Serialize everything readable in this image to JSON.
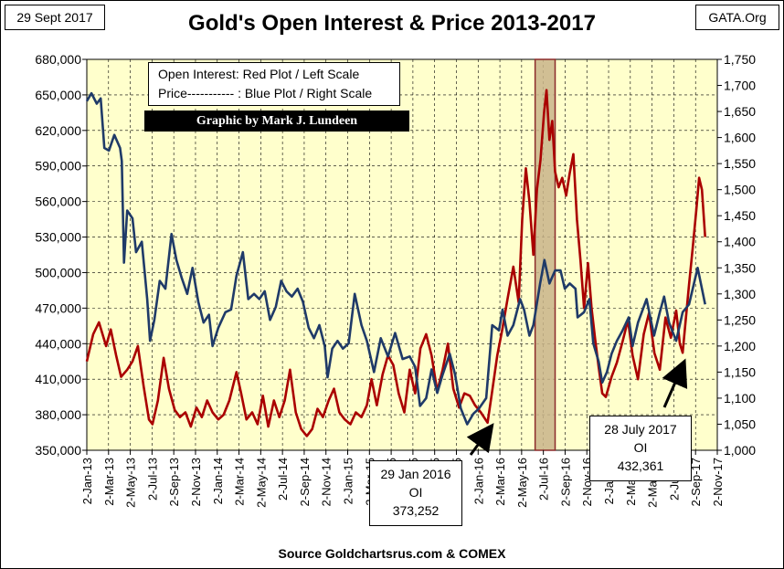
{
  "header": {
    "date": "29 Sept 2017",
    "brand": "GATA.Org",
    "title": "Gold's Open Interest & Price 2013-2017"
  },
  "legend": {
    "line1": "Open Interest:  Red Plot / Left Scale",
    "line2": "Price----------- : Blue Plot / Right Scale",
    "credit": "Graphic by Mark J. Lundeen"
  },
  "annotations": [
    {
      "date_line": "29 Jan 2016",
      "label": "OI",
      "value": "373,252"
    },
    {
      "date_line": "28 July 2017",
      "label": "OI",
      "value": "432,361"
    }
  ],
  "source": "Source Goldchartsrus.com & COMEX",
  "colors": {
    "plot_bg": "#ffffcc",
    "open_interest": "#aa0000",
    "price": "#1f3a68",
    "highlight": "#c9b48a",
    "highlight_border": "#8b2a2a"
  },
  "chart_data": {
    "type": "line",
    "x_tick_labels": [
      "2-Jan-13",
      "2-Mar-13",
      "2-May-13",
      "2-Jul-13",
      "2-Sep-13",
      "2-Nov-13",
      "2-Jan-14",
      "2-Mar-14",
      "2-May-14",
      "2-Jul-14",
      "2-Sep-14",
      "2-Nov-14",
      "2-Jan-15",
      "2-Mar-15",
      "2-May-15",
      "2-Jul-15",
      "2-Sep-15",
      "2-Nov-15",
      "2-Jan-16",
      "2-Mar-16",
      "2-May-16",
      "2-Jul-16",
      "2-Sep-16",
      "2-Nov-16",
      "2-Jan-17",
      "2-Mar-17",
      "2-May-17",
      "2-Jul-17",
      "2-Sep-17",
      "2-Nov-17"
    ],
    "y_left": {
      "min": 350000,
      "max": 680000,
      "step": 30000,
      "ticks": [
        "350,000",
        "380,000",
        "410,000",
        "440,000",
        "470,000",
        "500,000",
        "530,000",
        "560,000",
        "590,000",
        "620,000",
        "650,000",
        "680,000"
      ]
    },
    "y_right": {
      "min": 1000,
      "max": 1750,
      "step": 50,
      "ticks": [
        "1,000",
        "1,050",
        "1,100",
        "1,150",
        "1,200",
        "1,250",
        "1,300",
        "1,350",
        "1,400",
        "1,450",
        "1,500",
        "1,550",
        "1,600",
        "1,650",
        "1,700",
        "1,750"
      ]
    },
    "highlight_range": [
      "2016-06-10",
      "2016-08-05"
    ],
    "series": [
      {
        "name": "Open Interest",
        "axis": "left",
        "points": [
          [
            "2013-01-02",
            425000
          ],
          [
            "2013-01-20",
            448000
          ],
          [
            "2013-02-05",
            458000
          ],
          [
            "2013-02-25",
            438000
          ],
          [
            "2013-03-10",
            452000
          ],
          [
            "2013-03-25",
            430000
          ],
          [
            "2013-04-08",
            412000
          ],
          [
            "2013-04-25",
            418000
          ],
          [
            "2013-05-10",
            425000
          ],
          [
            "2013-05-25",
            438000
          ],
          [
            "2013-06-10",
            404000
          ],
          [
            "2013-06-25",
            376000
          ],
          [
            "2013-07-05",
            372000
          ],
          [
            "2013-07-20",
            392000
          ],
          [
            "2013-08-05",
            428000
          ],
          [
            "2013-08-20",
            402000
          ],
          [
            "2013-09-05",
            384000
          ],
          [
            "2013-09-20",
            378000
          ],
          [
            "2013-10-05",
            382000
          ],
          [
            "2013-10-20",
            370000
          ],
          [
            "2013-11-05",
            386000
          ],
          [
            "2013-11-20",
            378000
          ],
          [
            "2013-12-05",
            392000
          ],
          [
            "2013-12-20",
            382000
          ],
          [
            "2014-01-05",
            376000
          ],
          [
            "2014-01-20",
            380000
          ],
          [
            "2014-02-05",
            392000
          ],
          [
            "2014-02-25",
            416000
          ],
          [
            "2014-03-10",
            398000
          ],
          [
            "2014-03-25",
            376000
          ],
          [
            "2014-04-10",
            382000
          ],
          [
            "2014-04-25",
            372000
          ],
          [
            "2014-05-10",
            396000
          ],
          [
            "2014-05-25",
            370000
          ],
          [
            "2014-06-10",
            392000
          ],
          [
            "2014-06-25",
            378000
          ],
          [
            "2014-07-10",
            392000
          ],
          [
            "2014-07-25",
            418000
          ],
          [
            "2014-08-10",
            382000
          ],
          [
            "2014-08-25",
            368000
          ],
          [
            "2014-09-10",
            362000
          ],
          [
            "2014-09-25",
            368000
          ],
          [
            "2014-10-10",
            385000
          ],
          [
            "2014-10-25",
            378000
          ],
          [
            "2014-11-10",
            392000
          ],
          [
            "2014-11-25",
            402000
          ],
          [
            "2014-12-10",
            382000
          ],
          [
            "2014-12-25",
            376000
          ],
          [
            "2015-01-10",
            372000
          ],
          [
            "2015-01-25",
            382000
          ],
          [
            "2015-02-10",
            378000
          ],
          [
            "2015-02-25",
            388000
          ],
          [
            "2015-03-10",
            410000
          ],
          [
            "2015-03-25",
            388000
          ],
          [
            "2015-04-10",
            414000
          ],
          [
            "2015-04-25",
            430000
          ],
          [
            "2015-05-10",
            422000
          ],
          [
            "2015-05-25",
            398000
          ],
          [
            "2015-06-10",
            382000
          ],
          [
            "2015-06-25",
            418000
          ],
          [
            "2015-07-10",
            398000
          ],
          [
            "2015-07-25",
            436000
          ],
          [
            "2015-08-10",
            448000
          ],
          [
            "2015-08-25",
            430000
          ],
          [
            "2015-09-10",
            400000
          ],
          [
            "2015-09-25",
            418000
          ],
          [
            "2015-10-10",
            440000
          ],
          [
            "2015-10-25",
            402000
          ],
          [
            "2015-11-10",
            386000
          ],
          [
            "2015-11-25",
            398000
          ],
          [
            "2015-12-10",
            396000
          ],
          [
            "2015-12-25",
            388000
          ],
          [
            "2016-01-10",
            382000
          ],
          [
            "2016-01-29",
            373252
          ],
          [
            "2016-02-10",
            398000
          ],
          [
            "2016-02-25",
            430000
          ],
          [
            "2016-03-10",
            452000
          ],
          [
            "2016-03-25",
            478000
          ],
          [
            "2016-04-10",
            505000
          ],
          [
            "2016-04-25",
            475000
          ],
          [
            "2016-05-05",
            545000
          ],
          [
            "2016-05-15",
            588000
          ],
          [
            "2016-05-25",
            560000
          ],
          [
            "2016-06-05",
            515000
          ],
          [
            "2016-06-15",
            570000
          ],
          [
            "2016-06-25",
            595000
          ],
          [
            "2016-07-05",
            635000
          ],
          [
            "2016-07-12",
            654000
          ],
          [
            "2016-07-20",
            612000
          ],
          [
            "2016-07-28",
            628000
          ],
          [
            "2016-08-05",
            585000
          ],
          [
            "2016-08-15",
            572000
          ],
          [
            "2016-08-25",
            580000
          ],
          [
            "2016-09-05",
            565000
          ],
          [
            "2016-09-15",
            584000
          ],
          [
            "2016-09-25",
            600000
          ],
          [
            "2016-10-05",
            545000
          ],
          [
            "2016-10-15",
            510000
          ],
          [
            "2016-10-25",
            470000
          ],
          [
            "2016-11-05",
            508000
          ],
          [
            "2016-11-15",
            470000
          ],
          [
            "2016-11-25",
            444000
          ],
          [
            "2016-12-05",
            420000
          ],
          [
            "2016-12-15",
            398000
          ],
          [
            "2016-12-25",
            395000
          ],
          [
            "2017-01-10",
            412000
          ],
          [
            "2017-01-25",
            424000
          ],
          [
            "2017-02-10",
            442000
          ],
          [
            "2017-02-25",
            460000
          ],
          [
            "2017-03-10",
            430000
          ],
          [
            "2017-03-25",
            410000
          ],
          [
            "2017-04-10",
            448000
          ],
          [
            "2017-04-25",
            466000
          ],
          [
            "2017-05-10",
            432000
          ],
          [
            "2017-05-25",
            418000
          ],
          [
            "2017-06-10",
            462000
          ],
          [
            "2017-06-25",
            445000
          ],
          [
            "2017-07-10",
            468000
          ],
          [
            "2017-07-20",
            440000
          ],
          [
            "2017-07-28",
            432361
          ],
          [
            "2017-08-05",
            458000
          ],
          [
            "2017-08-15",
            490000
          ],
          [
            "2017-08-25",
            520000
          ],
          [
            "2017-09-05",
            555000
          ],
          [
            "2017-09-12",
            580000
          ],
          [
            "2017-09-20",
            570000
          ],
          [
            "2017-09-29",
            530000
          ]
        ]
      },
      {
        "name": "Price",
        "axis": "right",
        "points": [
          [
            "2013-01-02",
            1670
          ],
          [
            "2013-01-15",
            1685
          ],
          [
            "2013-01-30",
            1665
          ],
          [
            "2013-02-10",
            1675
          ],
          [
            "2013-02-20",
            1580
          ],
          [
            "2013-03-05",
            1575
          ],
          [
            "2013-03-20",
            1605
          ],
          [
            "2013-04-05",
            1580
          ],
          [
            "2013-04-10",
            1555
          ],
          [
            "2013-04-16",
            1360
          ],
          [
            "2013-04-25",
            1460
          ],
          [
            "2013-05-10",
            1445
          ],
          [
            "2013-05-20",
            1380
          ],
          [
            "2013-06-05",
            1400
          ],
          [
            "2013-06-20",
            1290
          ],
          [
            "2013-06-28",
            1210
          ],
          [
            "2013-07-10",
            1250
          ],
          [
            "2013-07-25",
            1325
          ],
          [
            "2013-08-10",
            1310
          ],
          [
            "2013-08-27",
            1415
          ],
          [
            "2013-09-10",
            1365
          ],
          [
            "2013-09-25",
            1330
          ],
          [
            "2013-10-10",
            1300
          ],
          [
            "2013-10-25",
            1350
          ],
          [
            "2013-11-10",
            1285
          ],
          [
            "2013-11-25",
            1245
          ],
          [
            "2013-12-10",
            1260
          ],
          [
            "2013-12-20",
            1200
          ],
          [
            "2014-01-05",
            1235
          ],
          [
            "2014-01-25",
            1265
          ],
          [
            "2014-02-10",
            1270
          ],
          [
            "2014-02-25",
            1335
          ],
          [
            "2014-03-15",
            1380
          ],
          [
            "2014-03-30",
            1290
          ],
          [
            "2014-04-15",
            1300
          ],
          [
            "2014-04-30",
            1290
          ],
          [
            "2014-05-15",
            1305
          ],
          [
            "2014-05-30",
            1250
          ],
          [
            "2014-06-15",
            1275
          ],
          [
            "2014-06-30",
            1325
          ],
          [
            "2014-07-15",
            1305
          ],
          [
            "2014-07-30",
            1295
          ],
          [
            "2014-08-15",
            1310
          ],
          [
            "2014-08-30",
            1285
          ],
          [
            "2014-09-15",
            1235
          ],
          [
            "2014-09-30",
            1215
          ],
          [
            "2014-10-15",
            1240
          ],
          [
            "2014-10-30",
            1200
          ],
          [
            "2014-11-07",
            1140
          ],
          [
            "2014-11-20",
            1195
          ],
          [
            "2014-12-05",
            1210
          ],
          [
            "2014-12-20",
            1195
          ],
          [
            "2015-01-05",
            1205
          ],
          [
            "2015-01-22",
            1300
          ],
          [
            "2015-02-10",
            1240
          ],
          [
            "2015-02-25",
            1210
          ],
          [
            "2015-03-17",
            1150
          ],
          [
            "2015-04-05",
            1215
          ],
          [
            "2015-04-25",
            1180
          ],
          [
            "2015-05-15",
            1225
          ],
          [
            "2015-06-05",
            1175
          ],
          [
            "2015-06-25",
            1180
          ],
          [
            "2015-07-10",
            1160
          ],
          [
            "2015-07-24",
            1085
          ],
          [
            "2015-08-10",
            1100
          ],
          [
            "2015-08-25",
            1155
          ],
          [
            "2015-09-10",
            1110
          ],
          [
            "2015-09-25",
            1145
          ],
          [
            "2015-10-15",
            1185
          ],
          [
            "2015-10-30",
            1145
          ],
          [
            "2015-11-15",
            1080
          ],
          [
            "2015-12-03",
            1050
          ],
          [
            "2015-12-20",
            1070
          ],
          [
            "2016-01-05",
            1080
          ],
          [
            "2016-01-25",
            1100
          ],
          [
            "2016-02-11",
            1240
          ],
          [
            "2016-03-01",
            1230
          ],
          [
            "2016-03-11",
            1270
          ],
          [
            "2016-03-25",
            1220
          ],
          [
            "2016-04-10",
            1240
          ],
          [
            "2016-04-29",
            1290
          ],
          [
            "2016-05-10",
            1270
          ],
          [
            "2016-05-25",
            1220
          ],
          [
            "2016-06-05",
            1240
          ],
          [
            "2016-06-24",
            1320
          ],
          [
            "2016-07-06",
            1365
          ],
          [
            "2016-07-20",
            1320
          ],
          [
            "2016-08-05",
            1345
          ],
          [
            "2016-08-20",
            1345
          ],
          [
            "2016-09-01",
            1310
          ],
          [
            "2016-09-15",
            1320
          ],
          [
            "2016-10-01",
            1310
          ],
          [
            "2016-10-07",
            1255
          ],
          [
            "2016-10-25",
            1265
          ],
          [
            "2016-11-09",
            1290
          ],
          [
            "2016-11-20",
            1205
          ],
          [
            "2016-12-05",
            1170
          ],
          [
            "2016-12-15",
            1130
          ],
          [
            "2016-12-28",
            1150
          ],
          [
            "2017-01-10",
            1185
          ],
          [
            "2017-01-25",
            1210
          ],
          [
            "2017-02-10",
            1230
          ],
          [
            "2017-02-27",
            1255
          ],
          [
            "2017-03-10",
            1200
          ],
          [
            "2017-03-25",
            1245
          ],
          [
            "2017-04-18",
            1290
          ],
          [
            "2017-05-09",
            1220
          ],
          [
            "2017-05-25",
            1265
          ],
          [
            "2017-06-06",
            1295
          ],
          [
            "2017-06-20",
            1245
          ],
          [
            "2017-07-10",
            1210
          ],
          [
            "2017-07-28",
            1265
          ],
          [
            "2017-08-15",
            1280
          ],
          [
            "2017-09-08",
            1350
          ],
          [
            "2017-09-20",
            1310
          ],
          [
            "2017-09-29",
            1280
          ]
        ]
      }
    ]
  }
}
